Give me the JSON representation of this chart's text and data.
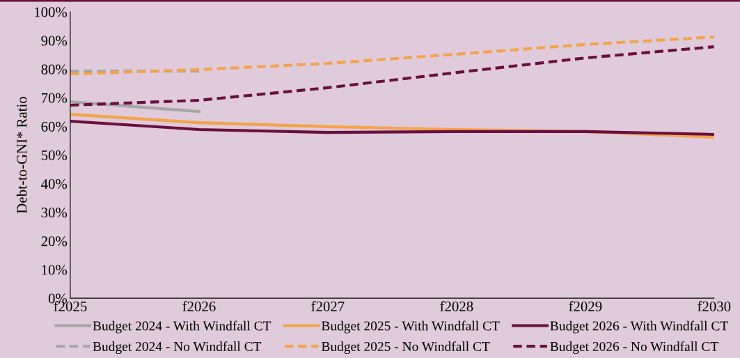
{
  "chart_data": {
    "type": "line",
    "ylabel": "Debt-to-GNI* Ratio",
    "categories": [
      "f2025",
      "f2026",
      "f2027",
      "f2028",
      "f2029",
      "f2030"
    ],
    "ylim": [
      0,
      100
    ],
    "yticks": [
      {
        "value": 0,
        "label": "0%"
      },
      {
        "value": 10,
        "label": "10%"
      },
      {
        "value": 20,
        "label": "20%"
      },
      {
        "value": 30,
        "label": "30%"
      },
      {
        "value": 40,
        "label": "40%"
      },
      {
        "value": 50,
        "label": "50%"
      },
      {
        "value": 60,
        "label": "60%"
      },
      {
        "value": 70,
        "label": "70%"
      },
      {
        "value": 80,
        "label": "80%"
      },
      {
        "value": 90,
        "label": "90%"
      },
      {
        "value": 100,
        "label": "100%"
      }
    ],
    "grid": false,
    "legend": "bottom",
    "marker": "none",
    "series": [
      {
        "name": "Budget 2024 - With Windfall CT",
        "color": "#a6a6a6",
        "line_style": "solid",
        "values": [
          68.6,
          65.2,
          null,
          null,
          null,
          null
        ]
      },
      {
        "name": "Budget 2024 - No Windfall CT",
        "color": "#a6a6a6",
        "line_style": "dashed",
        "values": [
          79.3,
          79.3,
          null,
          null,
          null,
          null
        ]
      },
      {
        "name": "Budget 2025 - With Windfall CT",
        "color": "#f4a34a",
        "line_style": "solid",
        "values": [
          64.2,
          61.3,
          59.9,
          58.9,
          58.2,
          56.2
        ]
      },
      {
        "name": "Budget 2025 - No Windfall CT",
        "color": "#f4a34a",
        "line_style": "dashed",
        "values": [
          78.3,
          79.8,
          82.0,
          85.2,
          88.6,
          91.2
        ]
      },
      {
        "name": "Budget 2026 - With Windfall CT",
        "color": "#6b0f3f",
        "line_style": "solid",
        "values": [
          61.8,
          58.9,
          57.9,
          58.2,
          58.2,
          57.2
        ]
      },
      {
        "name": "Budget 2026 - No Windfall CT",
        "color": "#6b0f3f",
        "line_style": "dashed",
        "values": [
          67.4,
          69.1,
          73.5,
          78.8,
          83.9,
          87.8
        ]
      }
    ]
  }
}
